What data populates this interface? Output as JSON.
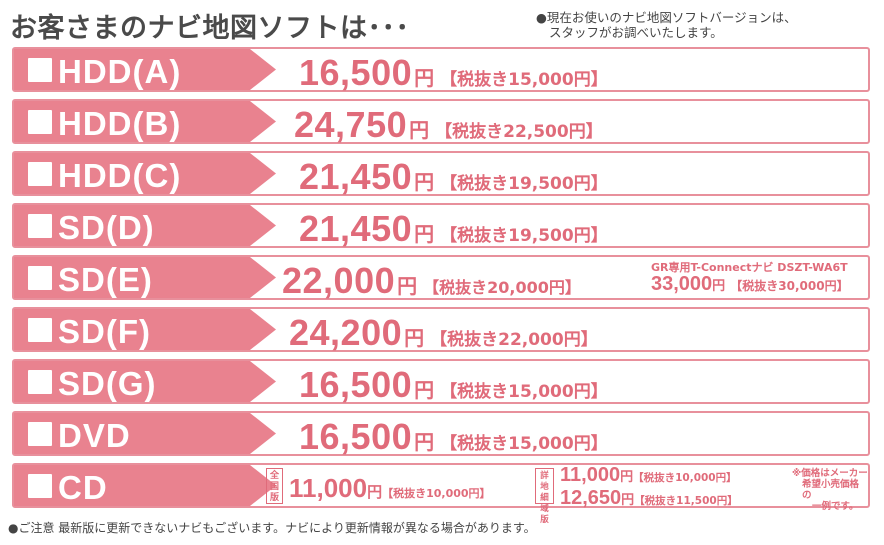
{
  "header": {
    "title": "お客さまのナビ地図ソフトは･･･",
    "note_line1": "●現在お使いのナビ地図ソフトバージョンは、",
    "note_line2": "スタッフがお調べいたします。"
  },
  "rows": [
    {
      "label": "HDD(A)",
      "price": "16,500",
      "yen": "円",
      "tax": "【税抜き15,000円】"
    },
    {
      "label": "HDD(B)",
      "price": "24,750",
      "yen": "円",
      "tax": "【税抜き22,500円】"
    },
    {
      "label": "HDD(C)",
      "price": "21,450",
      "yen": "円",
      "tax": "【税抜き19,500円】"
    },
    {
      "label": "SD(D)",
      "price": "21,450",
      "yen": "円",
      "tax": "【税抜き19,500円】"
    },
    {
      "label": "SD(E)",
      "price": "22,000",
      "yen": "円",
      "tax": "【税抜き20,000円】",
      "extra": {
        "title": "GR専用T-Connectナビ DSZT-WA6T",
        "price": "33,000",
        "yen": "円",
        "tax": "【税抜き30,000円】"
      }
    },
    {
      "label": "SD(F)",
      "price": "24,200",
      "yen": "円",
      "tax": "【税抜き22,000円】"
    },
    {
      "label": "SD(G)",
      "price": "16,500",
      "yen": "円",
      "tax": "【税抜き15,000円】"
    },
    {
      "label": "DVD",
      "price": "16,500",
      "yen": "円",
      "tax": "【税抜き15,000円】"
    }
  ],
  "cd": {
    "label": "CD",
    "tag_national": "全国版",
    "national_price": "11,000",
    "national_yen": "円",
    "national_tax": "【税抜き10,000円】",
    "tag_detail": "詳地細域版",
    "detail_price1": "11,000",
    "detail_yen1": "円",
    "detail_tax1": "【税抜き10,000円】",
    "detail_price2": "12,650",
    "detail_yen2": "円",
    "detail_tax2": "【税抜き11,500円】",
    "note_line1": "※価格はメーカー",
    "note_line2": "希望小売価格の",
    "note_line3": "一例です。"
  },
  "footer": {
    "text": "●ご注意 最新版に更新できないナビもございます。ナビにより更新情報が異なる場合があります。"
  },
  "colors": {
    "accent": "#e9828f",
    "price": "#e06b7a",
    "border": "#e8909c"
  }
}
